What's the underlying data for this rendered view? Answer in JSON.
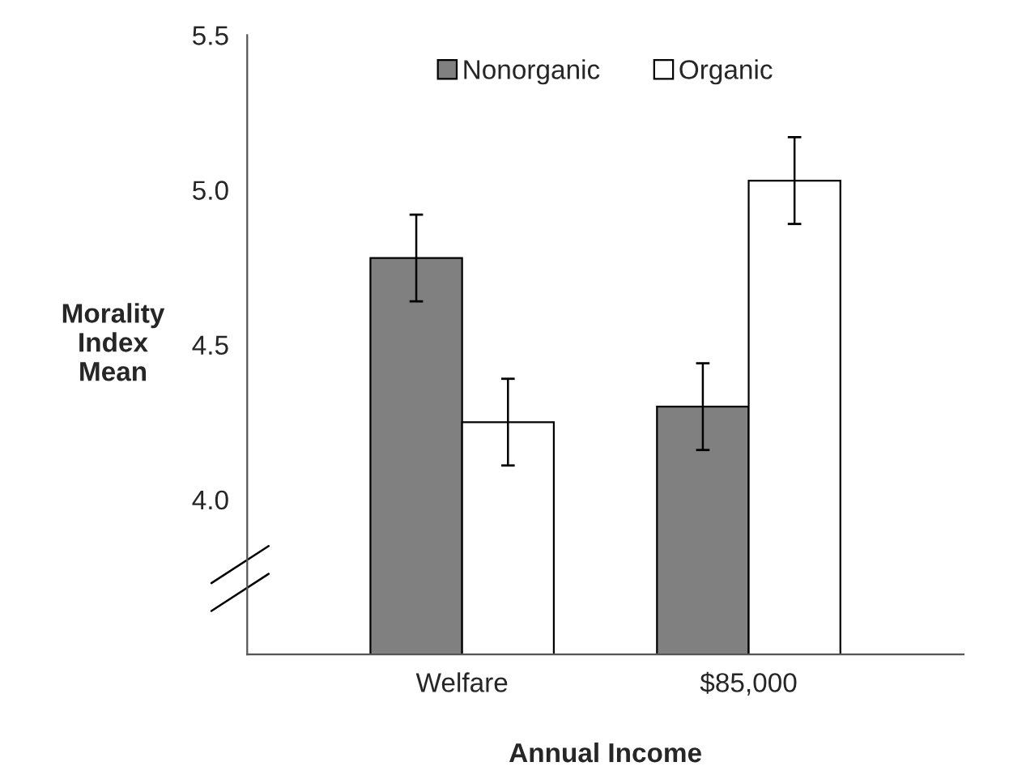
{
  "chart_data": {
    "type": "bar",
    "xlabel": "Annual Income",
    "ylabel": "Morality\nIndex\nMean",
    "categories": [
      "Welfare",
      "$85,000"
    ],
    "series": [
      {
        "name": "Nonorganic",
        "color": "#808080",
        "values": [
          4.78,
          4.3
        ],
        "errors": [
          0.14,
          0.14
        ]
      },
      {
        "name": "Organic",
        "color": "#ffffff",
        "values": [
          4.25,
          5.03
        ],
        "errors": [
          0.14,
          0.14
        ]
      }
    ],
    "ylim": [
      3.5,
      5.5
    ],
    "yticks": [
      {
        "value": 4.0,
        "label": "4.0"
      },
      {
        "value": 4.5,
        "label": "4.5"
      },
      {
        "value": 5.0,
        "label": "5.0"
      },
      {
        "value": 5.5,
        "label": "5.5"
      }
    ],
    "grid": false,
    "legend": "top"
  }
}
